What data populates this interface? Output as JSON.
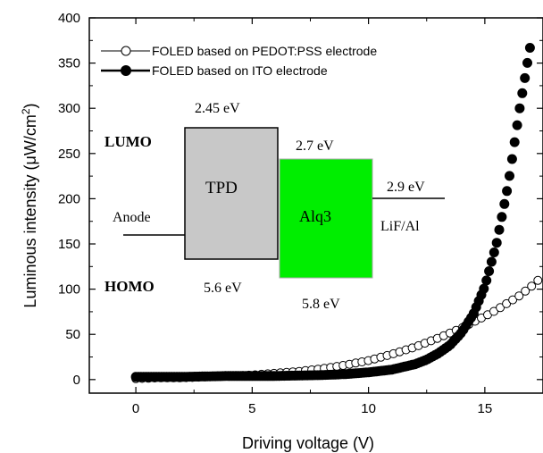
{
  "chart_data": {
    "type": "scatter",
    "title": "",
    "xlabel": "Driving voltage (V)",
    "ylabel_main": "Luminous intensity (μW/cm",
    "ylabel_sup": "2",
    "ylabel_close": ")",
    "xlim": [
      -2,
      17.5
    ],
    "ylim": [
      -15,
      400
    ],
    "xticks": [
      0,
      5,
      10,
      15
    ],
    "xtick_labels": [
      "0",
      "5",
      "10",
      "15"
    ],
    "yticks": [
      0,
      50,
      100,
      150,
      200,
      250,
      300,
      350,
      400
    ],
    "ytick_labels": [
      "0",
      "50",
      "100",
      "150",
      "200",
      "250",
      "300",
      "350",
      "400"
    ],
    "legend_position": "top-left",
    "series": [
      {
        "name": "FOLED based on PEDOT:PSS electrode",
        "marker": "open-circle",
        "color": "#000000",
        "x": [
          0,
          1,
          2,
          3,
          4,
          5,
          6,
          7,
          8,
          9,
          10,
          11,
          12,
          13,
          14,
          15,
          15.5,
          16,
          16.5,
          17,
          17.5
        ],
        "y": [
          1,
          2,
          2,
          3,
          4,
          5,
          7,
          9,
          12,
          16,
          21,
          28,
          36,
          46,
          57,
          70,
          77,
          85,
          93,
          103,
          115
        ]
      },
      {
        "name": "FOLED based on ITO electrode",
        "marker": "filled-circle",
        "color": "#000000",
        "x": [
          0,
          2,
          4,
          6,
          8,
          9,
          10,
          11,
          12,
          12.5,
          13,
          13.5,
          14,
          14.5,
          15,
          15.5,
          16,
          16.5,
          17
        ],
        "y": [
          3,
          3,
          4,
          4,
          5,
          6,
          8,
          11,
          17,
          22,
          29,
          38,
          52,
          72,
          103,
          150,
          215,
          300,
          376
        ]
      }
    ],
    "inset": {
      "lumo_label": "LUMO",
      "homo_label": "HOMO",
      "anode_label": "Anode",
      "tpd_label": "TPD",
      "alq3_label": "Alq3",
      "lif_label": "LiF/Al",
      "tpd_lumo": "2.45 eV",
      "tpd_homo": "5.6 eV",
      "alq3_lumo": "2.7 eV",
      "alq3_homo": "5.8 eV",
      "lif_level": "2.9 eV",
      "tpd_color": "#c8c8c8",
      "alq3_color": "#00ee00"
    }
  }
}
